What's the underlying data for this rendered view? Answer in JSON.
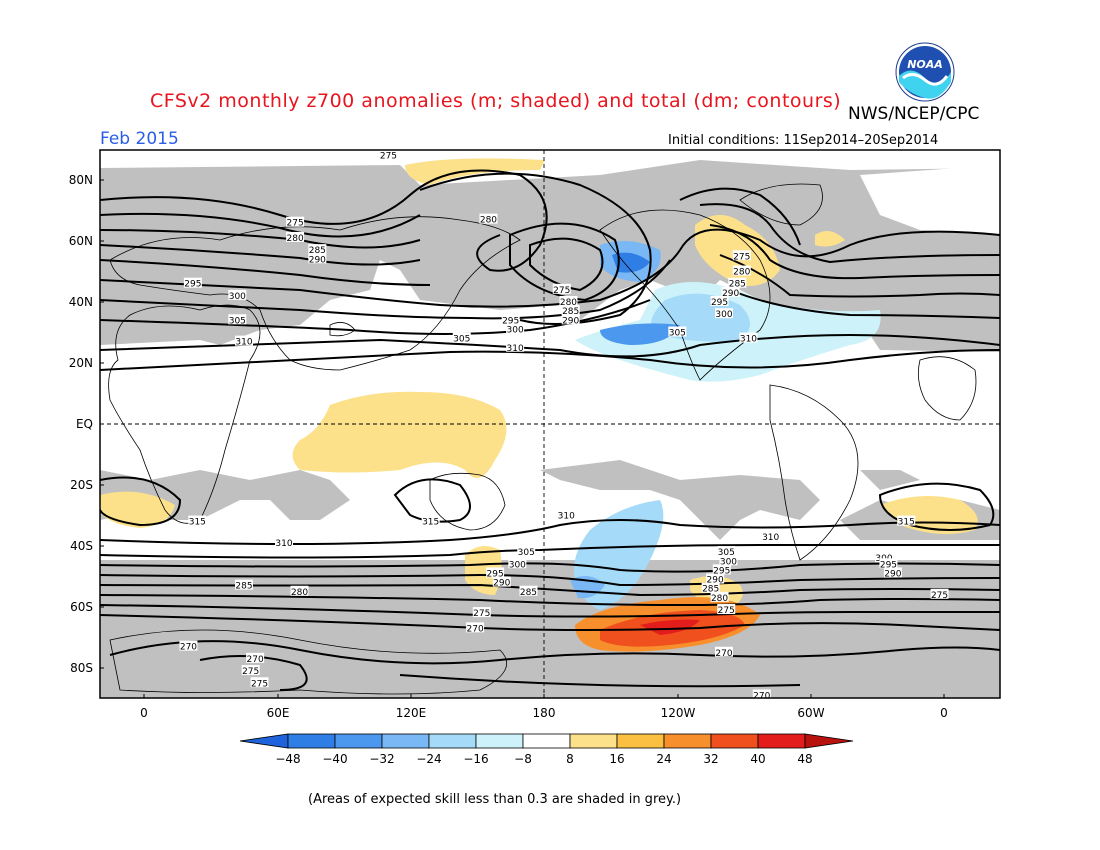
{
  "header": {
    "title": "CFSv2 monthly z700 anomalies (m; shaded) and total (dm; contours)",
    "agency": "NWS/NCEP/CPC",
    "month": "Feb 2015",
    "initial_conditions": "Initial conditions: 11Sep2014–20Sep2014",
    "logo_text": "NOAA"
  },
  "axes": {
    "lat_labels": [
      "80N",
      "60N",
      "40N",
      "20N",
      "EQ",
      "20S",
      "40S",
      "60S",
      "80S"
    ],
    "lon_labels": [
      "0",
      "60E",
      "120E",
      "180",
      "120W",
      "60W",
      "0"
    ]
  },
  "contours": {
    "labels": [
      {
        "text": "275",
        "lon": 110,
        "lat": 88
      },
      {
        "text": "275",
        "lon": 68,
        "lat": 66
      },
      {
        "text": "280",
        "lon": 68,
        "lat": 61
      },
      {
        "text": "285",
        "lon": 78,
        "lat": 57
      },
      {
        "text": "290",
        "lon": 78,
        "lat": 54
      },
      {
        "text": "295",
        "lon": 22,
        "lat": 46
      },
      {
        "text": "300",
        "lon": 42,
        "lat": 42
      },
      {
        "text": "305",
        "lon": 42,
        "lat": 34
      },
      {
        "text": "310",
        "lon": 45,
        "lat": 27
      },
      {
        "text": "280",
        "lon": 155,
        "lat": 67
      },
      {
        "text": "275",
        "lon": -172,
        "lat": 44
      },
      {
        "text": "280",
        "lon": -169,
        "lat": 40
      },
      {
        "text": "285",
        "lon": -168,
        "lat": 37
      },
      {
        "text": "290",
        "lon": -168,
        "lat": 34
      },
      {
        "text": "295",
        "lon": 165,
        "lat": 34
      },
      {
        "text": "300",
        "lon": 167,
        "lat": 31
      },
      {
        "text": "305",
        "lon": 143,
        "lat": 28
      },
      {
        "text": "310",
        "lon": 167,
        "lat": 25
      },
      {
        "text": "305",
        "lon": -120,
        "lat": 30
      },
      {
        "text": "310",
        "lon": -88,
        "lat": 28
      },
      {
        "text": "275",
        "lon": -91,
        "lat": 55
      },
      {
        "text": "280",
        "lon": -91,
        "lat": 50
      },
      {
        "text": "285",
        "lon": -93,
        "lat": 46
      },
      {
        "text": "290",
        "lon": -96,
        "lat": 43
      },
      {
        "text": "295",
        "lon": -101,
        "lat": 40
      },
      {
        "text": "300",
        "lon": -99,
        "lat": 36
      },
      {
        "text": "315",
        "lon": 24,
        "lat": -32
      },
      {
        "text": "315",
        "lon": 129,
        "lat": -32
      },
      {
        "text": "310",
        "lon": 63,
        "lat": -39
      },
      {
        "text": "310",
        "lon": -170,
        "lat": -30
      },
      {
        "text": "310",
        "lon": -78,
        "lat": -37
      },
      {
        "text": "315",
        "lon": -17,
        "lat": -32
      },
      {
        "text": "305",
        "lon": 172,
        "lat": -42
      },
      {
        "text": "300",
        "lon": 168,
        "lat": -46
      },
      {
        "text": "295",
        "lon": 158,
        "lat": -49
      },
      {
        "text": "290",
        "lon": 161,
        "lat": -52
      },
      {
        "text": "285",
        "lon": 173,
        "lat": -55
      },
      {
        "text": "275",
        "lon": 152,
        "lat": -62
      },
      {
        "text": "270",
        "lon": 149,
        "lat": -67
      },
      {
        "text": "305",
        "lon": -98,
        "lat": -42
      },
      {
        "text": "300",
        "lon": -97,
        "lat": -45
      },
      {
        "text": "295",
        "lon": -100,
        "lat": -48
      },
      {
        "text": "290",
        "lon": -103,
        "lat": -51
      },
      {
        "text": "285",
        "lon": -105,
        "lat": -54
      },
      {
        "text": "280",
        "lon": -101,
        "lat": -57
      },
      {
        "text": "275",
        "lon": -98,
        "lat": -61
      },
      {
        "text": "270",
        "lon": -99,
        "lat": -75
      },
      {
        "text": "270",
        "lon": -82,
        "lat": -89
      },
      {
        "text": "300",
        "lon": -27,
        "lat": -44
      },
      {
        "text": "295",
        "lon": -25,
        "lat": -46
      },
      {
        "text": "290",
        "lon": -23,
        "lat": -49
      },
      {
        "text": "285",
        "lon": 45,
        "lat": -53
      },
      {
        "text": "280",
        "lon": 70,
        "lat": -55
      },
      {
        "text": "275",
        "lon": -2,
        "lat": -56
      },
      {
        "text": "270",
        "lon": 20,
        "lat": -73
      },
      {
        "text": "270",
        "lon": 50,
        "lat": -77
      },
      {
        "text": "275",
        "lon": 48,
        "lat": -81
      },
      {
        "text": "275",
        "lon": 52,
        "lat": -85
      }
    ]
  },
  "colorbar": {
    "ticks": [
      "−48",
      "−40",
      "−32",
      "−24",
      "−16",
      "−8",
      "8",
      "16",
      "24",
      "32",
      "40",
      "48"
    ],
    "colors": [
      "#1e63dc",
      "#2f7ee6",
      "#4b98ee",
      "#79b8f5",
      "#a5dbf8",
      "#cdf2f9",
      "#ffffff",
      "#fde18a",
      "#fbc041",
      "#f7902c",
      "#f0501e",
      "#e21d1b",
      "#b8120f"
    ]
  },
  "footnote": "(Areas of expected skill less than 0.3 are shaded in grey.)"
}
